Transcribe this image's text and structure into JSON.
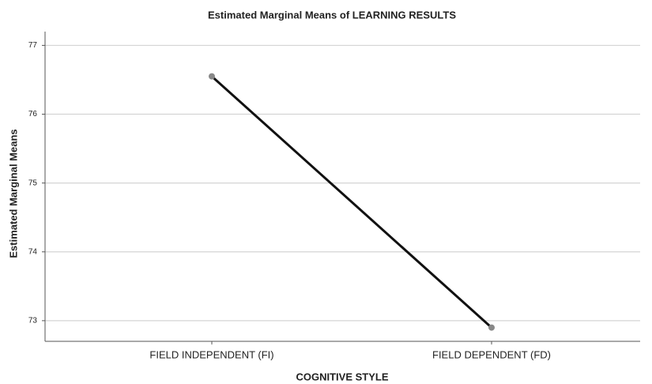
{
  "chart_data": {
    "type": "line",
    "title": "Estimated Marginal Means of LEARNING RESULTS",
    "x_label": "COGNITIVE STYLE",
    "y_label": "Estimated Marginal Means",
    "categories": [
      "FIELD INDEPENDENT (FI)",
      "FIELD DEPENDENT (FD)"
    ],
    "series": [
      {
        "color": "#111111",
        "values": [
          76.55,
          72.9
        ]
      }
    ],
    "ylim": [
      72.7,
      77.2
    ],
    "yticks": [
      73,
      74,
      75,
      76,
      77
    ],
    "grid": true
  }
}
